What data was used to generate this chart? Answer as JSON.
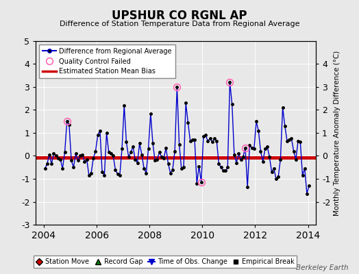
{
  "title": "UPSHUR CO RGNL AP",
  "subtitle": "Difference of Station Temperature Data from Regional Average",
  "ylabel_right": "Monthly Temperature Anomaly Difference (°C)",
  "bias": -0.07,
  "xlim": [
    2003.7,
    2014.3
  ],
  "ylim": [
    -3,
    5
  ],
  "yticks_left": [
    -3,
    -2,
    -1,
    0,
    1,
    2,
    3,
    4,
    5
  ],
  "yticks_right": [
    -2,
    -1,
    0,
    1,
    2,
    3,
    4
  ],
  "xtick_locs": [
    2004,
    2006,
    2008,
    2010,
    2012,
    2014
  ],
  "background_color": "#e8e8e8",
  "line_color": "#0000cc",
  "bias_color": "#cc0000",
  "watermark": "Berkeley Earth",
  "data": [
    [
      2004.042,
      -0.55
    ],
    [
      2004.125,
      -0.35
    ],
    [
      2004.208,
      0.05
    ],
    [
      2004.292,
      -0.35
    ],
    [
      2004.375,
      0.1
    ],
    [
      2004.458,
      0.0
    ],
    [
      2004.542,
      -0.1
    ],
    [
      2004.625,
      -0.15
    ],
    [
      2004.708,
      -0.55
    ],
    [
      2004.792,
      0.15
    ],
    [
      2004.875,
      1.5
    ],
    [
      2004.958,
      1.35
    ],
    [
      2005.042,
      -0.2
    ],
    [
      2005.125,
      -0.5
    ],
    [
      2005.208,
      0.1
    ],
    [
      2005.292,
      -0.2
    ],
    [
      2005.375,
      0.0
    ],
    [
      2005.458,
      0.05
    ],
    [
      2005.542,
      -0.25
    ],
    [
      2005.625,
      -0.15
    ],
    [
      2005.708,
      -0.85
    ],
    [
      2005.792,
      -0.75
    ],
    [
      2005.875,
      -0.1
    ],
    [
      2005.958,
      0.2
    ],
    [
      2006.042,
      0.9
    ],
    [
      2006.125,
      1.1
    ],
    [
      2006.208,
      -0.7
    ],
    [
      2006.292,
      -0.85
    ],
    [
      2006.375,
      1.0
    ],
    [
      2006.458,
      0.15
    ],
    [
      2006.542,
      0.1
    ],
    [
      2006.625,
      0.0
    ],
    [
      2006.708,
      -0.6
    ],
    [
      2006.792,
      -0.8
    ],
    [
      2006.875,
      -0.85
    ],
    [
      2006.958,
      0.3
    ],
    [
      2007.042,
      2.2
    ],
    [
      2007.125,
      0.6
    ],
    [
      2007.208,
      -0.05
    ],
    [
      2007.292,
      0.15
    ],
    [
      2007.375,
      0.4
    ],
    [
      2007.458,
      -0.15
    ],
    [
      2007.542,
      -0.3
    ],
    [
      2007.625,
      0.55
    ],
    [
      2007.708,
      0.05
    ],
    [
      2007.792,
      -0.55
    ],
    [
      2007.875,
      -0.75
    ],
    [
      2007.958,
      0.3
    ],
    [
      2008.042,
      1.85
    ],
    [
      2008.125,
      0.55
    ],
    [
      2008.208,
      -0.2
    ],
    [
      2008.292,
      -0.15
    ],
    [
      2008.375,
      0.15
    ],
    [
      2008.458,
      -0.05
    ],
    [
      2008.542,
      -0.1
    ],
    [
      2008.625,
      0.35
    ],
    [
      2008.708,
      -0.35
    ],
    [
      2008.792,
      -0.75
    ],
    [
      2008.875,
      -0.6
    ],
    [
      2008.958,
      0.2
    ],
    [
      2009.042,
      3.0
    ],
    [
      2009.125,
      0.5
    ],
    [
      2009.208,
      -0.55
    ],
    [
      2009.292,
      -0.5
    ],
    [
      2009.375,
      2.3
    ],
    [
      2009.458,
      1.45
    ],
    [
      2009.542,
      0.65
    ],
    [
      2009.625,
      0.7
    ],
    [
      2009.708,
      0.7
    ],
    [
      2009.792,
      -1.2
    ],
    [
      2009.875,
      -0.45
    ],
    [
      2009.958,
      -1.15
    ],
    [
      2010.042,
      0.85
    ],
    [
      2010.125,
      0.9
    ],
    [
      2010.208,
      0.65
    ],
    [
      2010.292,
      0.75
    ],
    [
      2010.375,
      0.6
    ],
    [
      2010.458,
      0.75
    ],
    [
      2010.542,
      0.65
    ],
    [
      2010.625,
      -0.35
    ],
    [
      2010.708,
      -0.5
    ],
    [
      2010.792,
      -0.65
    ],
    [
      2010.875,
      -0.65
    ],
    [
      2010.958,
      -0.5
    ],
    [
      2011.042,
      3.2
    ],
    [
      2011.125,
      2.25
    ],
    [
      2011.208,
      0.05
    ],
    [
      2011.292,
      -0.3
    ],
    [
      2011.375,
      0.1
    ],
    [
      2011.458,
      -0.15
    ],
    [
      2011.542,
      -0.05
    ],
    [
      2011.625,
      0.35
    ],
    [
      2011.708,
      -1.35
    ],
    [
      2011.792,
      0.45
    ],
    [
      2011.875,
      0.35
    ],
    [
      2011.958,
      0.3
    ],
    [
      2012.042,
      1.5
    ],
    [
      2012.125,
      1.1
    ],
    [
      2012.208,
      0.2
    ],
    [
      2012.292,
      -0.25
    ],
    [
      2012.375,
      0.3
    ],
    [
      2012.458,
      0.4
    ],
    [
      2012.542,
      -0.05
    ],
    [
      2012.625,
      -0.7
    ],
    [
      2012.708,
      -0.55
    ],
    [
      2012.792,
      -1.0
    ],
    [
      2012.875,
      -0.9
    ],
    [
      2012.958,
      -0.15
    ],
    [
      2013.042,
      2.1
    ],
    [
      2013.125,
      1.3
    ],
    [
      2013.208,
      0.65
    ],
    [
      2013.292,
      0.7
    ],
    [
      2013.375,
      0.75
    ],
    [
      2013.458,
      0.2
    ],
    [
      2013.542,
      -0.15
    ],
    [
      2013.625,
      0.65
    ],
    [
      2013.708,
      0.6
    ],
    [
      2013.792,
      -0.85
    ],
    [
      2013.875,
      -0.55
    ],
    [
      2013.958,
      -1.65
    ],
    [
      2014.042,
      -1.3
    ]
  ],
  "qc_failed_x": [
    2004.875,
    2009.042,
    2009.958,
    2011.042,
    2011.625
  ],
  "qc_failed_y": [
    1.5,
    3.0,
    -1.15,
    3.2,
    0.35
  ]
}
